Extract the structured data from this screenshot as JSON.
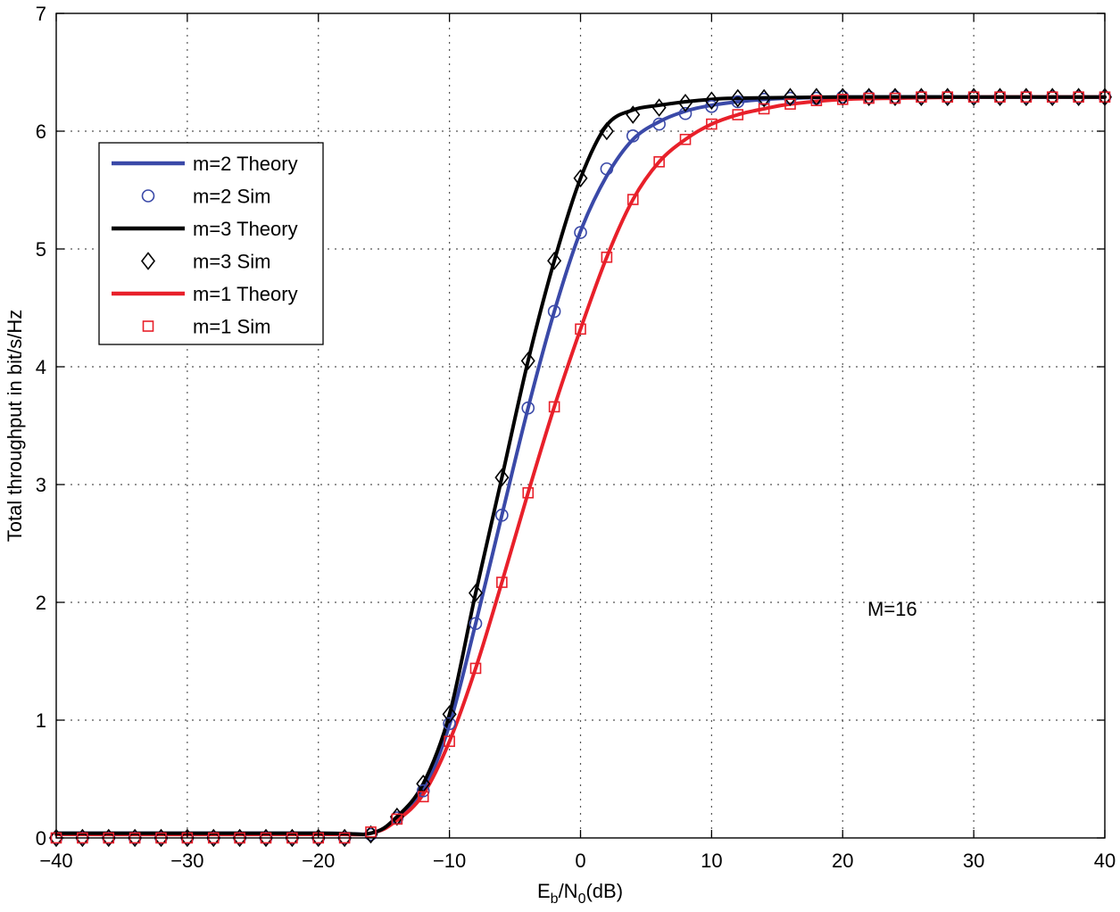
{
  "chart_data": {
    "type": "line",
    "title": "",
    "xlabel": {
      "base": "E",
      "sub1": "b",
      "mid": "/N",
      "sub2": "0",
      "tail": "(dB)"
    },
    "ylabel": "Total throughput in bit/s/Hz",
    "xlim": [
      -40,
      40
    ],
    "ylim": [
      0,
      7
    ],
    "xticks": [
      -40,
      -30,
      -20,
      -10,
      0,
      10,
      20,
      30,
      40
    ],
    "yticks": [
      0,
      1,
      2,
      3,
      4,
      5,
      6,
      7
    ],
    "xtick_labels": [
      "−40",
      "−30",
      "−20",
      "−10",
      "0",
      "10",
      "20",
      "30",
      "40"
    ],
    "ytick_labels": [
      "0",
      "1",
      "2",
      "3",
      "4",
      "5",
      "6",
      "7"
    ],
    "grid": true,
    "legend_position": "top-left",
    "annotation": "M=16",
    "legend": [
      {
        "label": "m=2 Theory",
        "kind": "line",
        "color": "#3a49a8"
      },
      {
        "label": "m=2 Sim",
        "kind": "circle",
        "color": "#3a49a8"
      },
      {
        "label": "m=3 Theory",
        "kind": "line",
        "color": "#000000"
      },
      {
        "label": "m=3 Sim",
        "kind": "diamond",
        "color": "#000000"
      },
      {
        "label": "m=1 Theory",
        "kind": "line",
        "color": "#e8202a"
      },
      {
        "label": "m=1 Sim",
        "kind": "square",
        "color": "#e8202a"
      }
    ],
    "series": [
      {
        "name": "m=2 Theory",
        "style": "line",
        "color": "#3a49a8",
        "x": [
          -40,
          -20,
          -16,
          -14,
          -12,
          -10,
          -8,
          -6,
          -4,
          -2,
          0,
          2,
          4,
          6,
          8,
          10,
          12,
          14,
          16,
          20,
          30,
          40
        ],
        "y": [
          0.04,
          0.04,
          0.04,
          0.17,
          0.4,
          0.96,
          1.82,
          2.74,
          3.65,
          4.47,
          5.15,
          5.62,
          5.93,
          6.08,
          6.17,
          6.22,
          6.25,
          6.27,
          6.28,
          6.29,
          6.29,
          6.29
        ]
      },
      {
        "name": "m=2 Sim",
        "style": "marker",
        "marker": "circle",
        "color": "#3a49a8",
        "x": [
          -40,
          -38,
          -36,
          -34,
          -32,
          -30,
          -28,
          -26,
          -24,
          -22,
          -20,
          -18,
          -16,
          -14,
          -12,
          -10,
          -8,
          -6,
          -4,
          -2,
          0,
          2,
          4,
          6,
          8,
          10,
          12,
          14,
          16,
          18,
          20,
          22,
          24,
          26,
          28,
          30,
          32,
          34,
          36,
          38,
          40
        ],
        "y": [
          0,
          0,
          0,
          0,
          0,
          0,
          0,
          0,
          0,
          0,
          0,
          0,
          0.03,
          0.17,
          0.4,
          0.97,
          1.82,
          2.74,
          3.65,
          4.47,
          5.14,
          5.68,
          5.96,
          6.06,
          6.15,
          6.21,
          6.25,
          6.27,
          6.28,
          6.28,
          6.29,
          6.29,
          6.29,
          6.29,
          6.29,
          6.29,
          6.29,
          6.29,
          6.29,
          6.29,
          6.29
        ]
      },
      {
        "name": "m=3 Theory",
        "style": "line",
        "color": "#000000",
        "x": [
          -40,
          -20,
          -16,
          -14,
          -12,
          -10,
          -8,
          -6,
          -4,
          -2,
          0,
          2,
          4,
          6,
          8,
          10,
          12,
          20,
          30,
          40
        ],
        "y": [
          0.04,
          0.04,
          0.04,
          0.18,
          0.46,
          1.05,
          2.08,
          3.06,
          4.05,
          4.9,
          5.6,
          6.05,
          6.18,
          6.22,
          6.25,
          6.27,
          6.28,
          6.29,
          6.29,
          6.29
        ]
      },
      {
        "name": "m=3 Sim",
        "style": "marker",
        "marker": "diamond",
        "color": "#000000",
        "x": [
          -40,
          -38,
          -36,
          -34,
          -32,
          -30,
          -28,
          -26,
          -24,
          -22,
          -20,
          -18,
          -16,
          -14,
          -12,
          -10,
          -8,
          -6,
          -4,
          -2,
          0,
          2,
          4,
          6,
          8,
          10,
          12,
          14,
          16,
          18,
          20,
          22,
          24,
          26,
          28,
          30,
          32,
          34,
          36,
          38,
          40
        ],
        "y": [
          0,
          0,
          0,
          0,
          0,
          0,
          0,
          0,
          0,
          0,
          0,
          0,
          0.03,
          0.18,
          0.46,
          1.05,
          2.08,
          3.06,
          4.05,
          4.9,
          5.6,
          6.0,
          6.14,
          6.2,
          6.24,
          6.26,
          6.28,
          6.28,
          6.29,
          6.29,
          6.29,
          6.29,
          6.29,
          6.29,
          6.29,
          6.29,
          6.29,
          6.29,
          6.29,
          6.29,
          6.29
        ]
      },
      {
        "name": "m=1 Theory",
        "style": "line",
        "color": "#e8202a",
        "x": [
          -40,
          -20,
          -16,
          -14,
          -12,
          -10,
          -8,
          -6,
          -4,
          -2,
          0,
          2,
          4,
          6,
          8,
          10,
          12,
          14,
          16,
          20,
          24,
          30,
          40
        ],
        "y": [
          0.03,
          0.03,
          0.04,
          0.15,
          0.37,
          0.82,
          1.44,
          2.17,
          2.93,
          3.66,
          4.32,
          4.93,
          5.42,
          5.74,
          5.93,
          6.06,
          6.14,
          6.19,
          6.23,
          6.27,
          6.28,
          6.29,
          6.29
        ]
      },
      {
        "name": "m=1 Sim",
        "style": "marker",
        "marker": "square",
        "color": "#e8202a",
        "x": [
          -40,
          -38,
          -36,
          -34,
          -32,
          -30,
          -28,
          -26,
          -24,
          -22,
          -20,
          -18,
          -16,
          -14,
          -12,
          -10,
          -8,
          -6,
          -4,
          -2,
          0,
          2,
          4,
          6,
          8,
          10,
          12,
          14,
          16,
          18,
          20,
          22,
          24,
          26,
          28,
          30,
          32,
          34,
          36,
          38,
          40
        ],
        "y": [
          0,
          0,
          0,
          0,
          0,
          0,
          0,
          0,
          0,
          0,
          0,
          0,
          0.05,
          0.16,
          0.35,
          0.82,
          1.44,
          2.17,
          2.93,
          3.66,
          4.32,
          4.93,
          5.42,
          5.74,
          5.93,
          6.06,
          6.14,
          6.19,
          6.23,
          6.26,
          6.27,
          6.28,
          6.28,
          6.29,
          6.29,
          6.29,
          6.29,
          6.29,
          6.29,
          6.29,
          6.29
        ]
      }
    ]
  }
}
